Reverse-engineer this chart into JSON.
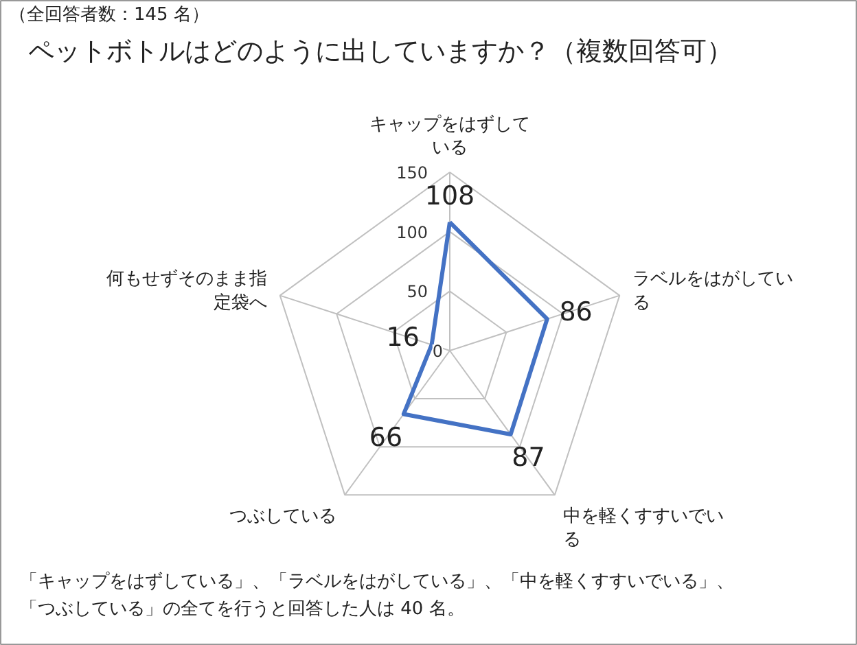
{
  "chart_data": {
    "type": "radar",
    "title": "ペットボトルはどのように出していますか？（複数回答可）",
    "categories": [
      "キャップをはずしている",
      "ラベルをはがしている",
      "中を軽くすすいでいる",
      "つぶしている",
      "何もせずそのまま指定袋へ"
    ],
    "series": [
      {
        "color": "#4472c4",
        "values": [
          108,
          86,
          87,
          66,
          16
        ]
      }
    ],
    "ylim": [
      0,
      150
    ],
    "yticks": [
      0,
      50,
      100,
      150
    ],
    "grid": true,
    "data_labels": true,
    "annotations": [
      "（全回答者数：145 名）",
      "「キャップをはずしている」、「ラベルをはがしている」、「中を軽くすすいでいる」、",
      "「つぶしている」の全てを行うと回答した人は 40 名。"
    ]
  }
}
